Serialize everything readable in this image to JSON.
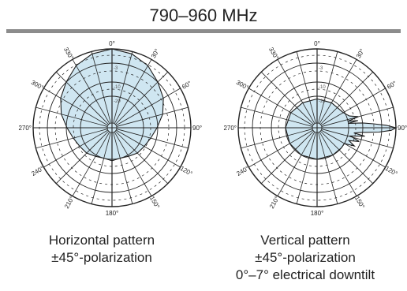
{
  "title": "790–960 MHz",
  "angle_labels": [
    "0°",
    "30°",
    "60°",
    "90°",
    "120°",
    "150°",
    "180°",
    "210°",
    "240°",
    "270°",
    "300°",
    "330°"
  ],
  "ring_labels": [
    "-3",
    "-10",
    "-20"
  ],
  "colors": {
    "fill": "#cfe6f1",
    "stroke": "#1a1a1a",
    "rule": "#8c8c8c",
    "grid": "#222222"
  },
  "charts": [
    {
      "caption_lines": [
        "Horizontal pattern",
        "±45°-polarization"
      ],
      "chart_data": {
        "type": "polar",
        "angles_deg": [
          0,
          15,
          30,
          45,
          60,
          75,
          90,
          105,
          120,
          135,
          150,
          165,
          180,
          195,
          210,
          225,
          240,
          255,
          270,
          285,
          300,
          315,
          330,
          345
        ],
        "values_db": [
          0,
          -0.5,
          -1.5,
          -3,
          -5,
          -7.5,
          -10.5,
          -14,
          -16,
          -17,
          -19,
          -20,
          -19,
          -20,
          -19,
          -17,
          -16,
          -14,
          -10.5,
          -7.5,
          -5,
          -3,
          -1.5,
          -0.5
        ]
      }
    },
    {
      "caption_lines": [
        "Vertical pattern",
        "±45°-polarization",
        "0°–7° electrical downtilt"
      ],
      "chart_data": {
        "type": "polar",
        "angles_deg": [
          0,
          30,
          60,
          70,
          75,
          78,
          80,
          82,
          84,
          86,
          88,
          90,
          92,
          94,
          96,
          98,
          100,
          104,
          108,
          112,
          116,
          120,
          130,
          150,
          180,
          210,
          240,
          270,
          300,
          330
        ],
        "values_db": [
          -22,
          -22,
          -21,
          -18,
          -12,
          -20,
          -13,
          -20,
          -10,
          -6,
          -2,
          0,
          -1,
          -4,
          -11,
          -16,
          -9,
          -18,
          -11,
          -18,
          -13,
          -20,
          -20,
          -20,
          -20,
          -20,
          -20,
          -20,
          -21,
          -22
        ]
      }
    }
  ]
}
